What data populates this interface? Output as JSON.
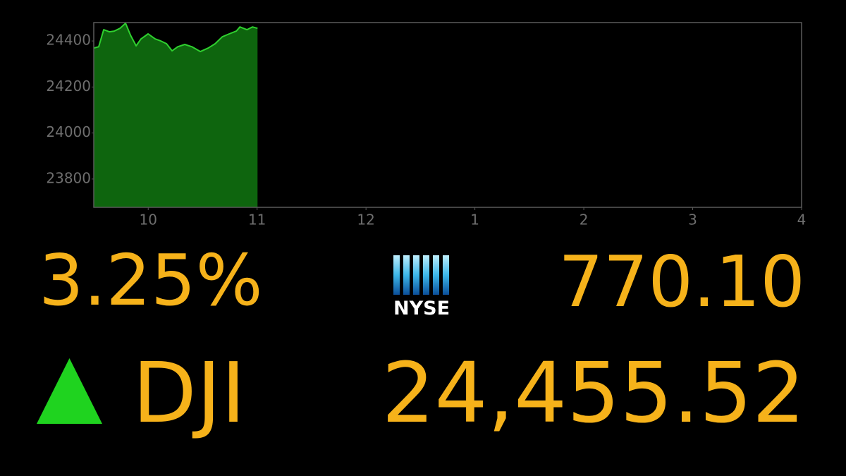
{
  "chart_data": {
    "type": "area",
    "x": [
      9.5,
      9.545,
      9.591,
      9.643,
      9.688,
      9.74,
      9.792,
      9.837,
      9.889,
      9.934,
      9.999,
      10.064,
      10.116,
      10.168,
      10.219,
      10.271,
      10.336,
      10.401,
      10.479,
      10.55,
      10.615,
      10.68,
      10.744,
      10.809,
      10.842,
      10.906,
      10.958,
      11.004
    ],
    "values": [
      24369,
      24375,
      24449,
      24440,
      24443,
      24455,
      24477,
      24425,
      24379,
      24409,
      24431,
      24409,
      24400,
      24388,
      24357,
      24375,
      24385,
      24375,
      24354,
      24369,
      24388,
      24418,
      24431,
      24443,
      24461,
      24449,
      24461,
      24455
    ],
    "color": "#2fd02f",
    "xlim": [
      9.5,
      16
    ],
    "xticks": [
      10,
      11,
      12,
      {
        "value": 13,
        "label": "1"
      },
      {
        "value": 14,
        "label": "2"
      },
      {
        "value": 15,
        "label": "3"
      },
      {
        "value": 16,
        "label": "4"
      }
    ],
    "ylim": [
      23677,
      24480
    ],
    "yticks": [
      23800,
      24000,
      24200,
      24400
    ]
  },
  "ticker": {
    "change_pct": "3.25%",
    "exchange": "NYSE",
    "change": "770.10",
    "symbol": "DJI",
    "price": "24,455.52"
  }
}
